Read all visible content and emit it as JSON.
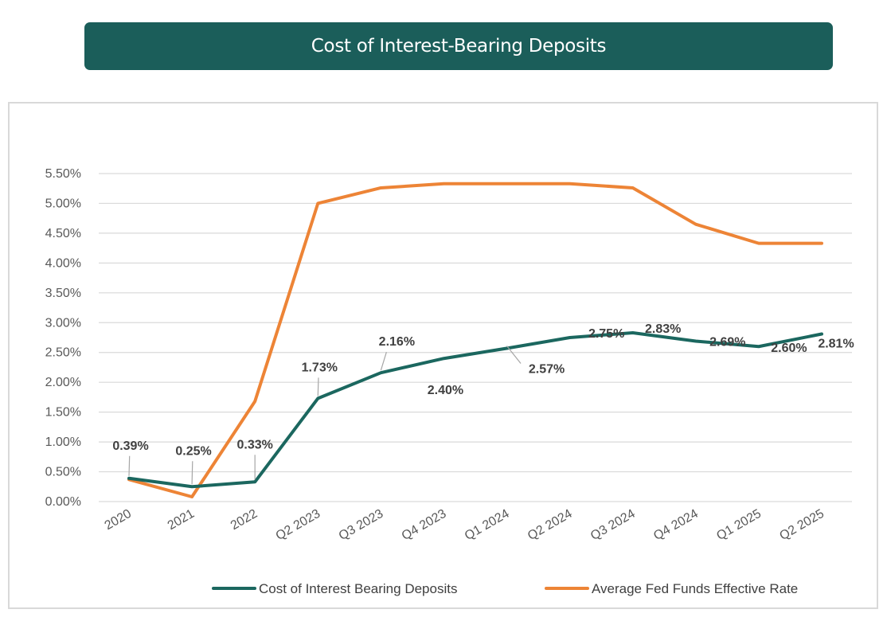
{
  "chart_data": {
    "type": "line",
    "title": "Cost of Interest-Bearing Deposits",
    "xlabel": "",
    "ylabel": "",
    "ylim": [
      0,
      5.5
    ],
    "y_ticks": [
      {
        "value": 0.0,
        "label": "0.00%"
      },
      {
        "value": 0.5,
        "label": "0.50%"
      },
      {
        "value": 1.0,
        "label": "1.00%"
      },
      {
        "value": 1.5,
        "label": "1.50%"
      },
      {
        "value": 2.0,
        "label": "2.00%"
      },
      {
        "value": 2.5,
        "label": "2.50%"
      },
      {
        "value": 3.0,
        "label": "3.00%"
      },
      {
        "value": 3.5,
        "label": "3.50%"
      },
      {
        "value": 4.0,
        "label": "4.00%"
      },
      {
        "value": 4.5,
        "label": "4.50%"
      },
      {
        "value": 5.0,
        "label": "5.00%"
      },
      {
        "value": 5.5,
        "label": "5.50%"
      }
    ],
    "grid": true,
    "legend_position": "bottom",
    "categories": [
      "2020",
      "2021",
      "2022",
      "Q2 2023",
      "Q3 2023",
      "Q4 2023",
      "Q1 2024",
      "Q2 2024",
      "Q3 2024",
      "Q4 2024",
      "Q1 2025",
      "Q2 2025"
    ],
    "series": [
      {
        "name": "Cost of Interest Bearing Deposits",
        "color": "#1b675f",
        "values": [
          0.39,
          0.25,
          0.33,
          1.73,
          2.16,
          2.4,
          2.57,
          2.75,
          2.83,
          2.69,
          2.6,
          2.81
        ],
        "labels": [
          "0.39%",
          "0.25%",
          "0.33%",
          "1.73%",
          "2.16%",
          "2.40%",
          "2.57%",
          "2.75%",
          "2.83%",
          "2.69%",
          "2.60%",
          "2.81%"
        ]
      },
      {
        "name": "Average Fed Funds Effective Rate",
        "color": "#ed8436",
        "values": [
          0.37,
          0.08,
          1.68,
          5.0,
          5.26,
          5.33,
          5.33,
          5.33,
          5.26,
          4.65,
          4.33,
          4.33
        ]
      }
    ]
  }
}
